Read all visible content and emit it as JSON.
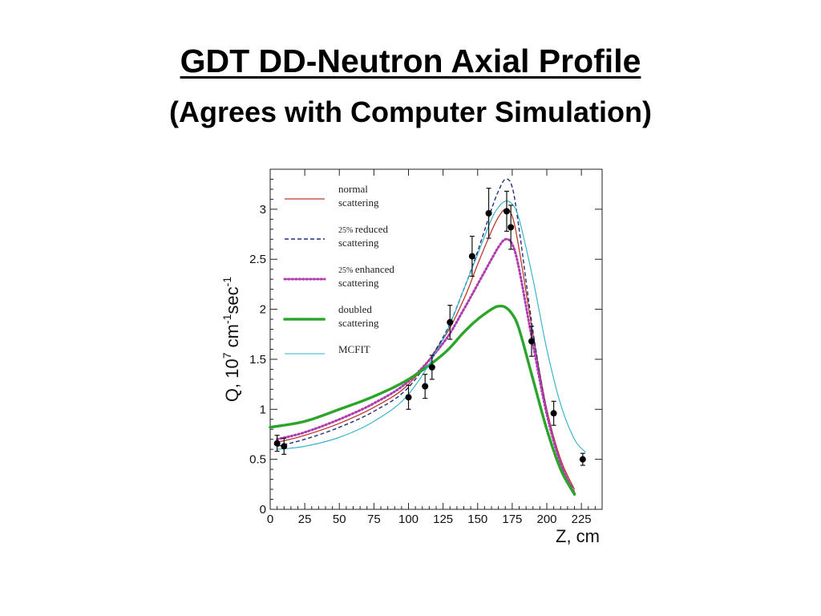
{
  "slide": {
    "title": "GDT  DD-Neutron Axial Profile",
    "subtitle": "(Agrees with Computer Simulation)"
  },
  "chart_data": {
    "type": "line",
    "xlabel": "Z, cm",
    "ylabel": {
      "prefix": "Q, 10",
      "exp1": "7",
      "mid1": " cm",
      "exp2": "-1",
      "mid2": "sec",
      "exp3": "-1"
    },
    "xlim": [
      0,
      240
    ],
    "ylim": [
      0,
      3.4
    ],
    "xticks": [
      0,
      25,
      50,
      75,
      100,
      125,
      150,
      175,
      200,
      225
    ],
    "yticks": [
      0,
      0.5,
      1,
      1.5,
      2,
      2.5,
      3
    ],
    "ytick_labels": [
      "0",
      "0.5",
      "1",
      "1.5",
      "2",
      "2.5",
      "3"
    ],
    "grid": false,
    "legend_position": "top-left",
    "series": [
      {
        "name": "normal scattering",
        "legend_lines": [
          {
            "small": "",
            "text": "normal"
          },
          {
            "small": "",
            "text": "scattering"
          }
        ],
        "color": "#c0392b",
        "style": "solid",
        "x": [
          5,
          25,
          50,
          75,
          100,
          125,
          140,
          150,
          160,
          165,
          170,
          175,
          180,
          190,
          200,
          210,
          220
        ],
        "y": [
          0.67,
          0.74,
          0.86,
          1.02,
          1.25,
          1.7,
          2.1,
          2.45,
          2.78,
          2.92,
          3.0,
          2.93,
          2.6,
          1.75,
          1.0,
          0.5,
          0.2
        ]
      },
      {
        "name": "25% reduced scattering",
        "legend_lines": [
          {
            "small": "25%",
            "text": "reduced"
          },
          {
            "small": "",
            "text": "scattering"
          }
        ],
        "color": "#1f2f7a",
        "style": "dashed",
        "x": [
          5,
          25,
          50,
          75,
          100,
          125,
          140,
          150,
          160,
          165,
          170,
          175,
          180,
          190,
          200,
          210,
          220
        ],
        "y": [
          0.63,
          0.7,
          0.82,
          0.98,
          1.22,
          1.72,
          2.2,
          2.58,
          3.0,
          3.18,
          3.3,
          3.22,
          2.8,
          1.78,
          0.98,
          0.46,
          0.18
        ]
      },
      {
        "name": "25% enhanced scattering",
        "legend_lines": [
          {
            "small": "25%",
            "text": "enhanced"
          },
          {
            "small": "",
            "text": "scattering"
          }
        ],
        "color": "#b03ab0",
        "style": "dotted",
        "x": [
          5,
          25,
          50,
          75,
          100,
          125,
          140,
          150,
          160,
          165,
          170,
          175,
          180,
          190,
          200,
          210,
          220
        ],
        "y": [
          0.7,
          0.77,
          0.9,
          1.06,
          1.28,
          1.66,
          2.0,
          2.25,
          2.5,
          2.62,
          2.7,
          2.65,
          2.4,
          1.65,
          0.95,
          0.46,
          0.16
        ]
      },
      {
        "name": "doubled scattering",
        "legend_lines": [
          {
            "small": "",
            "text": "doubled"
          },
          {
            "small": "",
            "text": "scattering"
          }
        ],
        "color": "#2aa52a",
        "style": "dotted-thick",
        "x": [
          0,
          25,
          50,
          75,
          100,
          125,
          140,
          150,
          160,
          165,
          170,
          175,
          180,
          190,
          200,
          210,
          220
        ],
        "y": [
          0.82,
          0.88,
          1.0,
          1.13,
          1.3,
          1.55,
          1.77,
          1.9,
          2.0,
          2.03,
          2.02,
          1.95,
          1.8,
          1.3,
          0.8,
          0.4,
          0.15
        ]
      },
      {
        "name": "MCFIT",
        "legend_lines": [
          {
            "small": "",
            "text": "MCFIT"
          }
        ],
        "color": "#2ab0c8",
        "style": "solid-thin",
        "x": [
          5,
          25,
          50,
          75,
          100,
          125,
          140,
          150,
          160,
          165,
          170,
          175,
          180,
          190,
          200,
          210,
          220,
          228
        ],
        "y": [
          0.6,
          0.63,
          0.72,
          0.88,
          1.15,
          1.7,
          2.2,
          2.55,
          2.9,
          3.02,
          3.08,
          3.05,
          2.9,
          2.3,
          1.6,
          1.05,
          0.7,
          0.57
        ]
      }
    ],
    "measurements": {
      "x": [
        5,
        10,
        100,
        112,
        117,
        130,
        146,
        158,
        171,
        174,
        189,
        205,
        226
      ],
      "y": [
        0.66,
        0.63,
        1.12,
        1.23,
        1.42,
        1.87,
        2.53,
        2.96,
        2.98,
        2.82,
        1.68,
        0.96,
        0.5
      ],
      "err": [
        0.08,
        0.08,
        0.12,
        0.12,
        0.12,
        0.17,
        0.2,
        0.25,
        0.2,
        0.22,
        0.15,
        0.12,
        0.06
      ]
    }
  }
}
